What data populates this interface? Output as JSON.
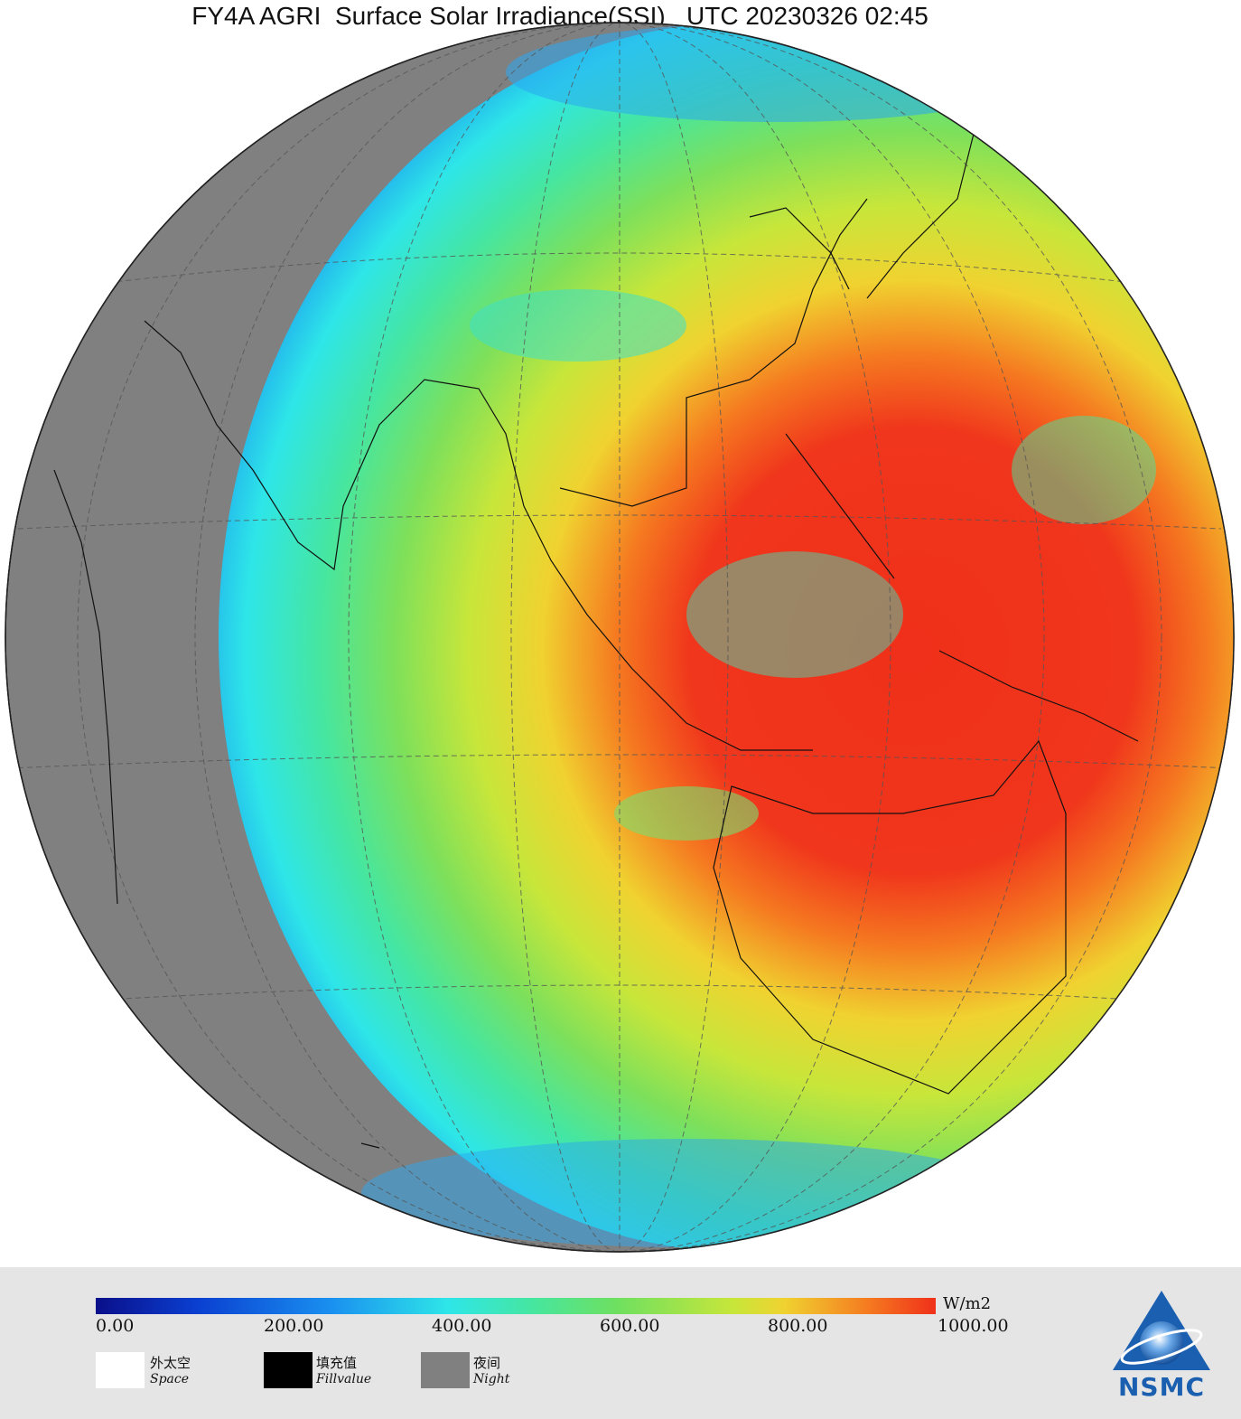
{
  "map": {
    "title": "FY4A AGRI  Surface Solar Irradiance(SSI)   UTC 20230326 02:45"
  },
  "colorbar": {
    "unit": "W/m2",
    "ticks": [
      "0.00",
      "200.00",
      "400.00",
      "600.00",
      "800.00",
      "1000.00"
    ],
    "colors": [
      "#0a0f8a",
      "#1a90f0",
      "#2ee6e8",
      "#6ee060",
      "#f0d230",
      "#f0301a"
    ]
  },
  "legend": {
    "space": {
      "cn": "外太空",
      "en": "Space",
      "color": "#ffffff"
    },
    "fill": {
      "cn": "填充值",
      "en": "Fillvalue",
      "color": "#000000"
    },
    "night": {
      "cn": "夜间",
      "en": "Night",
      "color": "#808080"
    }
  },
  "logo": {
    "text": "NSMC",
    "color": "#1a5fb0"
  }
}
